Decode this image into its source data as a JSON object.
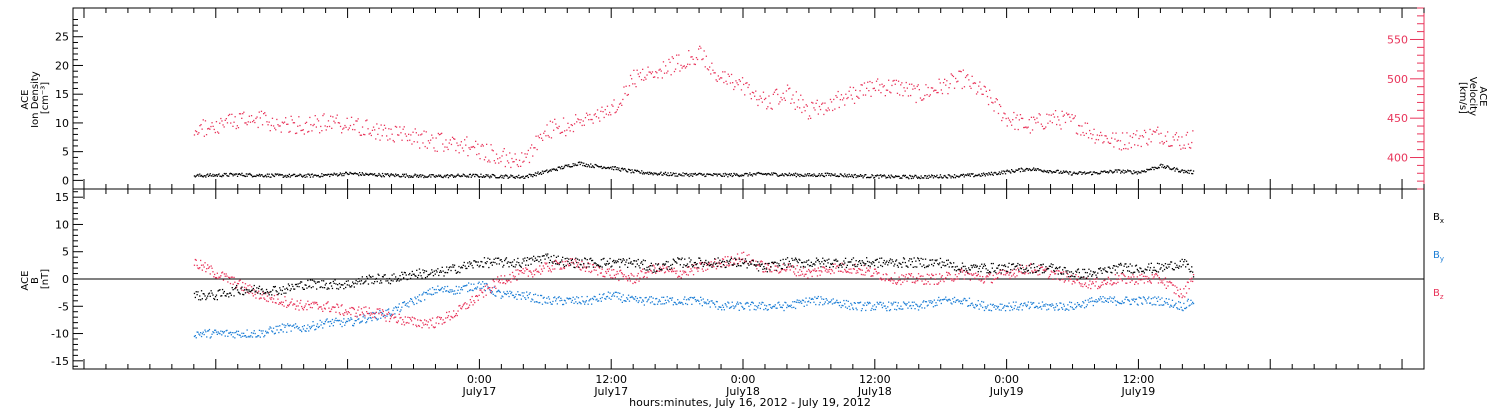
{
  "colors": {
    "black": "#000000",
    "magenta": "#e8345a",
    "blue": "#1e7fd6"
  },
  "chart_data": [
    {
      "type": "scatter",
      "panel": "top",
      "left_axis": {
        "label_lines": [
          "ACE",
          "Ion Density",
          "[cm⁻³]"
        ],
        "ylim": [
          -1.5,
          30
        ],
        "ticks": [
          0,
          5,
          10,
          15,
          20,
          25
        ]
      },
      "right_axis": {
        "label_lines": [
          "ACE",
          "Velocity",
          "[km/s]"
        ],
        "ylim": [
          360,
          590
        ],
        "ticks": [
          400,
          450,
          500,
          550
        ],
        "color": "#e8345a"
      },
      "series": [
        {
          "axis": "left",
          "color": "#000000",
          "x": [
            -26,
            -24,
            -22,
            -20,
            -18,
            -16,
            -14,
            -12,
            -10,
            -8,
            -6,
            -4,
            -2,
            0,
            2,
            4,
            6,
            8,
            9,
            10,
            12,
            14,
            16,
            18,
            20,
            22,
            24,
            26,
            28,
            30,
            32,
            34,
            36,
            38,
            40,
            42,
            44,
            46,
            48,
            50,
            52,
            54,
            56,
            58,
            60,
            62,
            64,
            65
          ],
          "values": [
            0.8,
            0.9,
            1.0,
            0.9,
            0.8,
            0.8,
            0.9,
            1.2,
            1.0,
            0.9,
            0.8,
            0.7,
            0.8,
            0.8,
            0.7,
            0.6,
            1.5,
            2.5,
            3.0,
            2.6,
            2.2,
            1.5,
            1.2,
            1.0,
            1.0,
            0.9,
            1.0,
            1.1,
            1.0,
            0.9,
            1.0,
            0.8,
            0.7,
            0.6,
            0.6,
            0.7,
            0.8,
            1.0,
            1.5,
            2.0,
            1.6,
            1.2,
            1.3,
            1.6,
            1.4,
            2.5,
            1.6,
            1.4
          ]
        },
        {
          "axis": "right",
          "color": "#e8345a",
          "x": [
            -26,
            -24,
            -22,
            -20,
            -18,
            -16,
            -14,
            -12,
            -10,
            -8,
            -6,
            -4,
            -2,
            0,
            2,
            4,
            6,
            8,
            10,
            12,
            14,
            16,
            18,
            20,
            22,
            24,
            26,
            28,
            30,
            32,
            34,
            36,
            38,
            40,
            42,
            44,
            46,
            48,
            50,
            52,
            54,
            56,
            58,
            60,
            62,
            64,
            65
          ],
          "values": [
            435,
            440,
            445,
            448,
            442,
            440,
            445,
            440,
            435,
            430,
            425,
            420,
            418,
            410,
            400,
            395,
            435,
            440,
            450,
            460,
            500,
            510,
            520,
            530,
            500,
            490,
            470,
            480,
            460,
            470,
            480,
            490,
            490,
            480,
            490,
            500,
            480,
            450,
            440,
            450,
            445,
            430,
            420,
            425,
            430,
            420,
            425
          ]
        }
      ]
    },
    {
      "type": "scatter",
      "panel": "bottom",
      "left_axis": {
        "label_lines": [
          "ACE",
          "B",
          "[nT]"
        ],
        "ylim": [
          -16.5,
          16.5
        ],
        "ticks": [
          -15,
          -10,
          -5,
          0,
          5,
          10,
          15
        ]
      },
      "zero_line": true,
      "series": [
        {
          "name": "Bx",
          "color": "#000000",
          "x": [
            -26,
            -24,
            -22,
            -20,
            -18,
            -16,
            -14,
            -12,
            -10,
            -8,
            -6,
            -4,
            -2,
            0,
            2,
            4,
            6,
            8,
            10,
            12,
            14,
            16,
            18,
            20,
            22,
            24,
            26,
            28,
            30,
            32,
            34,
            36,
            38,
            40,
            42,
            44,
            46,
            48,
            50,
            52,
            54,
            56,
            58,
            60,
            62,
            64,
            65
          ],
          "values": [
            -3,
            -3,
            -2,
            -2,
            -2,
            -1,
            -1,
            -1,
            0,
            0,
            1,
            1,
            2,
            3,
            3,
            3,
            4,
            3,
            3,
            3,
            3,
            2,
            3,
            3,
            3,
            3,
            2,
            3,
            3,
            3,
            3,
            3,
            3,
            3,
            3,
            2,
            2,
            2,
            2,
            2,
            1,
            1,
            2,
            2,
            2,
            3,
            1
          ]
        },
        {
          "name": "By",
          "color": "#1e7fd6",
          "x": [
            -26,
            -24,
            -22,
            -20,
            -18,
            -16,
            -14,
            -12,
            -10,
            -8,
            -6,
            -4,
            -2,
            0,
            2,
            4,
            6,
            8,
            10,
            12,
            14,
            16,
            18,
            20,
            22,
            24,
            26,
            28,
            30,
            32,
            34,
            36,
            38,
            40,
            42,
            44,
            46,
            48,
            50,
            52,
            54,
            56,
            58,
            60,
            62,
            64,
            65
          ],
          "values": [
            -10,
            -10,
            -10,
            -10,
            -9,
            -9,
            -8,
            -8,
            -7,
            -6,
            -4,
            -2,
            -2,
            -1,
            -3,
            -3,
            -4,
            -4,
            -4,
            -3,
            -4,
            -4,
            -4,
            -4,
            -5,
            -5,
            -5,
            -5,
            -4,
            -4,
            -5,
            -5,
            -5,
            -5,
            -4,
            -4,
            -5,
            -5,
            -5,
            -5,
            -5,
            -4,
            -4,
            -4,
            -4,
            -5,
            -4
          ]
        },
        {
          "name": "Bz",
          "color": "#e8345a",
          "x": [
            -26,
            -24,
            -22,
            -20,
            -18,
            -16,
            -14,
            -12,
            -10,
            -8,
            -6,
            -4,
            -2,
            0,
            2,
            4,
            6,
            8,
            10,
            12,
            14,
            16,
            18,
            20,
            22,
            24,
            26,
            28,
            30,
            32,
            34,
            36,
            38,
            40,
            42,
            44,
            46,
            48,
            50,
            52,
            54,
            56,
            58,
            60,
            62,
            64,
            65
          ],
          "values": [
            3,
            1,
            -1,
            -3,
            -4,
            -5,
            -5,
            -6,
            -6,
            -7,
            -8,
            -8,
            -6,
            -3,
            0,
            1,
            2,
            3,
            2,
            1,
            0,
            2,
            1,
            2,
            3,
            4,
            2,
            2,
            1,
            2,
            2,
            1,
            0,
            0,
            0,
            1,
            0,
            1,
            2,
            1,
            0,
            -1,
            0,
            0,
            0,
            -3,
            1
          ]
        }
      ],
      "legend": {
        "placement": "right",
        "items": [
          {
            "main": "B",
            "sub": "x",
            "color": "#000000"
          },
          {
            "main": "B",
            "sub": "y",
            "color": "#1e7fd6"
          },
          {
            "main": "B",
            "sub": "z",
            "color": "#e8345a"
          }
        ]
      }
    }
  ],
  "x_axis": {
    "unit": "hours since 0:00 July 17",
    "xlim": [
      -37,
      86
    ],
    "ticks": [
      {
        "x": 0,
        "time": "0:00",
        "date": "July17"
      },
      {
        "x": 12,
        "time": "12:00",
        "date": "July17"
      },
      {
        "x": 24,
        "time": "0:00",
        "date": "July18"
      },
      {
        "x": 36,
        "time": "12:00",
        "date": "July18"
      },
      {
        "x": 48,
        "time": "0:00",
        "date": "July19"
      },
      {
        "x": 60,
        "time": "12:00",
        "date": "July19"
      }
    ],
    "title": "hours:minutes, July 16, 2012 - July 19, 2012"
  }
}
